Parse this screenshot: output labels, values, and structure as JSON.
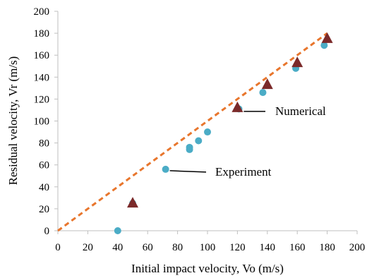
{
  "chart_data": {
    "type": "scatter",
    "title": "",
    "xlabel": "Initial impact velocity, Vo (m/s)",
    "ylabel": "Residual velocity, Vr (m/s)",
    "xlim": [
      0,
      200
    ],
    "ylim": [
      0,
      200
    ],
    "xticks": [
      0,
      20,
      40,
      60,
      80,
      100,
      120,
      140,
      160,
      180,
      200
    ],
    "yticks": [
      0,
      20,
      40,
      60,
      80,
      100,
      120,
      140,
      160,
      180,
      200
    ],
    "grid": false,
    "legend": "none",
    "series": [
      {
        "name": "Experiment",
        "marker": "circle",
        "color": "#4bacc6",
        "x": [
          40,
          50,
          72,
          88,
          88,
          94,
          100,
          121,
          137,
          159,
          178
        ],
        "y": [
          0,
          25,
          56,
          74,
          76,
          82,
          90,
          111,
          126,
          148,
          169
        ]
      },
      {
        "name": "Numerical",
        "marker": "triangle",
        "color": "#7b2a2a",
        "x": [
          50,
          120,
          140,
          160,
          180
        ],
        "y": [
          25,
          112,
          133,
          153,
          175
        ]
      },
      {
        "marker": "dashed-line",
        "color": "#e8762d",
        "x": [
          0,
          180
        ],
        "y": [
          0,
          180
        ]
      }
    ],
    "annotations": [
      {
        "text": "Numerical",
        "x": 120,
        "y": 112
      },
      {
        "text": "Experiment",
        "x": 72,
        "y": 56
      }
    ]
  }
}
